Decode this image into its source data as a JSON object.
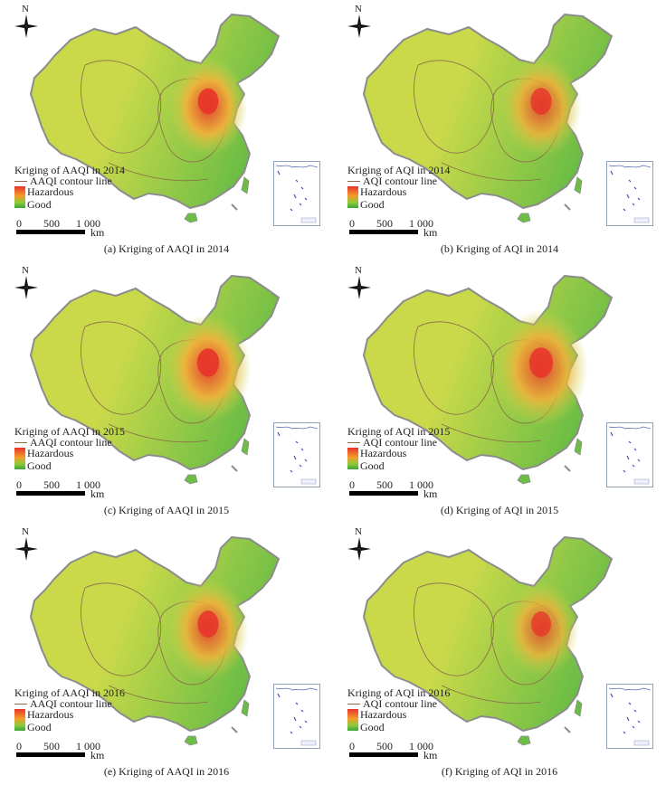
{
  "colors": {
    "good": "#6cbd45",
    "moderate": "#c9d94a",
    "sensitive": "#f4b13a",
    "hazardous": "#e8342a",
    "border": "#8c8c8c",
    "contour": "#8a6a4a"
  },
  "north_label": "N",
  "scale": {
    "ticks": [
      "0",
      "500",
      "1 000"
    ],
    "unit": "km"
  },
  "legend_labels": {
    "hazardous": "Hazardous",
    "good": "Good"
  },
  "panels": [
    {
      "title": "Kriging of AAQI in 2014",
      "contour_label": "AAQI contour line",
      "caption": "(a) Kriging of AAQI in 2014",
      "hotspot_intensity": 0.9,
      "hotspot_spread": 0.55
    },
    {
      "title": "Kriging of AQI in 2014",
      "contour_label": "AQI contour line",
      "caption": "(b) Kriging of AQI in 2014",
      "hotspot_intensity": 0.8,
      "hotspot_spread": 0.6
    },
    {
      "title": "Kriging of AAQI in 2015",
      "contour_label": "AAQI contour line",
      "caption": "(c) Kriging of AAQI in 2015",
      "hotspot_intensity": 0.9,
      "hotspot_spread": 0.7
    },
    {
      "title": "Kriging of AQI in 2015",
      "contour_label": "AQI contour line",
      "caption": "(d) Kriging of AQI in 2015",
      "hotspot_intensity": 0.85,
      "hotspot_spread": 0.85
    },
    {
      "title": "Kriging of AAQI in 2016",
      "contour_label": "AAQI contour line",
      "caption": "(e) Kriging of AAQI in 2016",
      "hotspot_intensity": 0.85,
      "hotspot_spread": 0.6
    },
    {
      "title": "Kriging of AQI in 2016",
      "contour_label": "AQI contour line",
      "caption": "(f) Kriging of AQI in 2016",
      "hotspot_intensity": 0.75,
      "hotspot_spread": 0.5
    }
  ]
}
